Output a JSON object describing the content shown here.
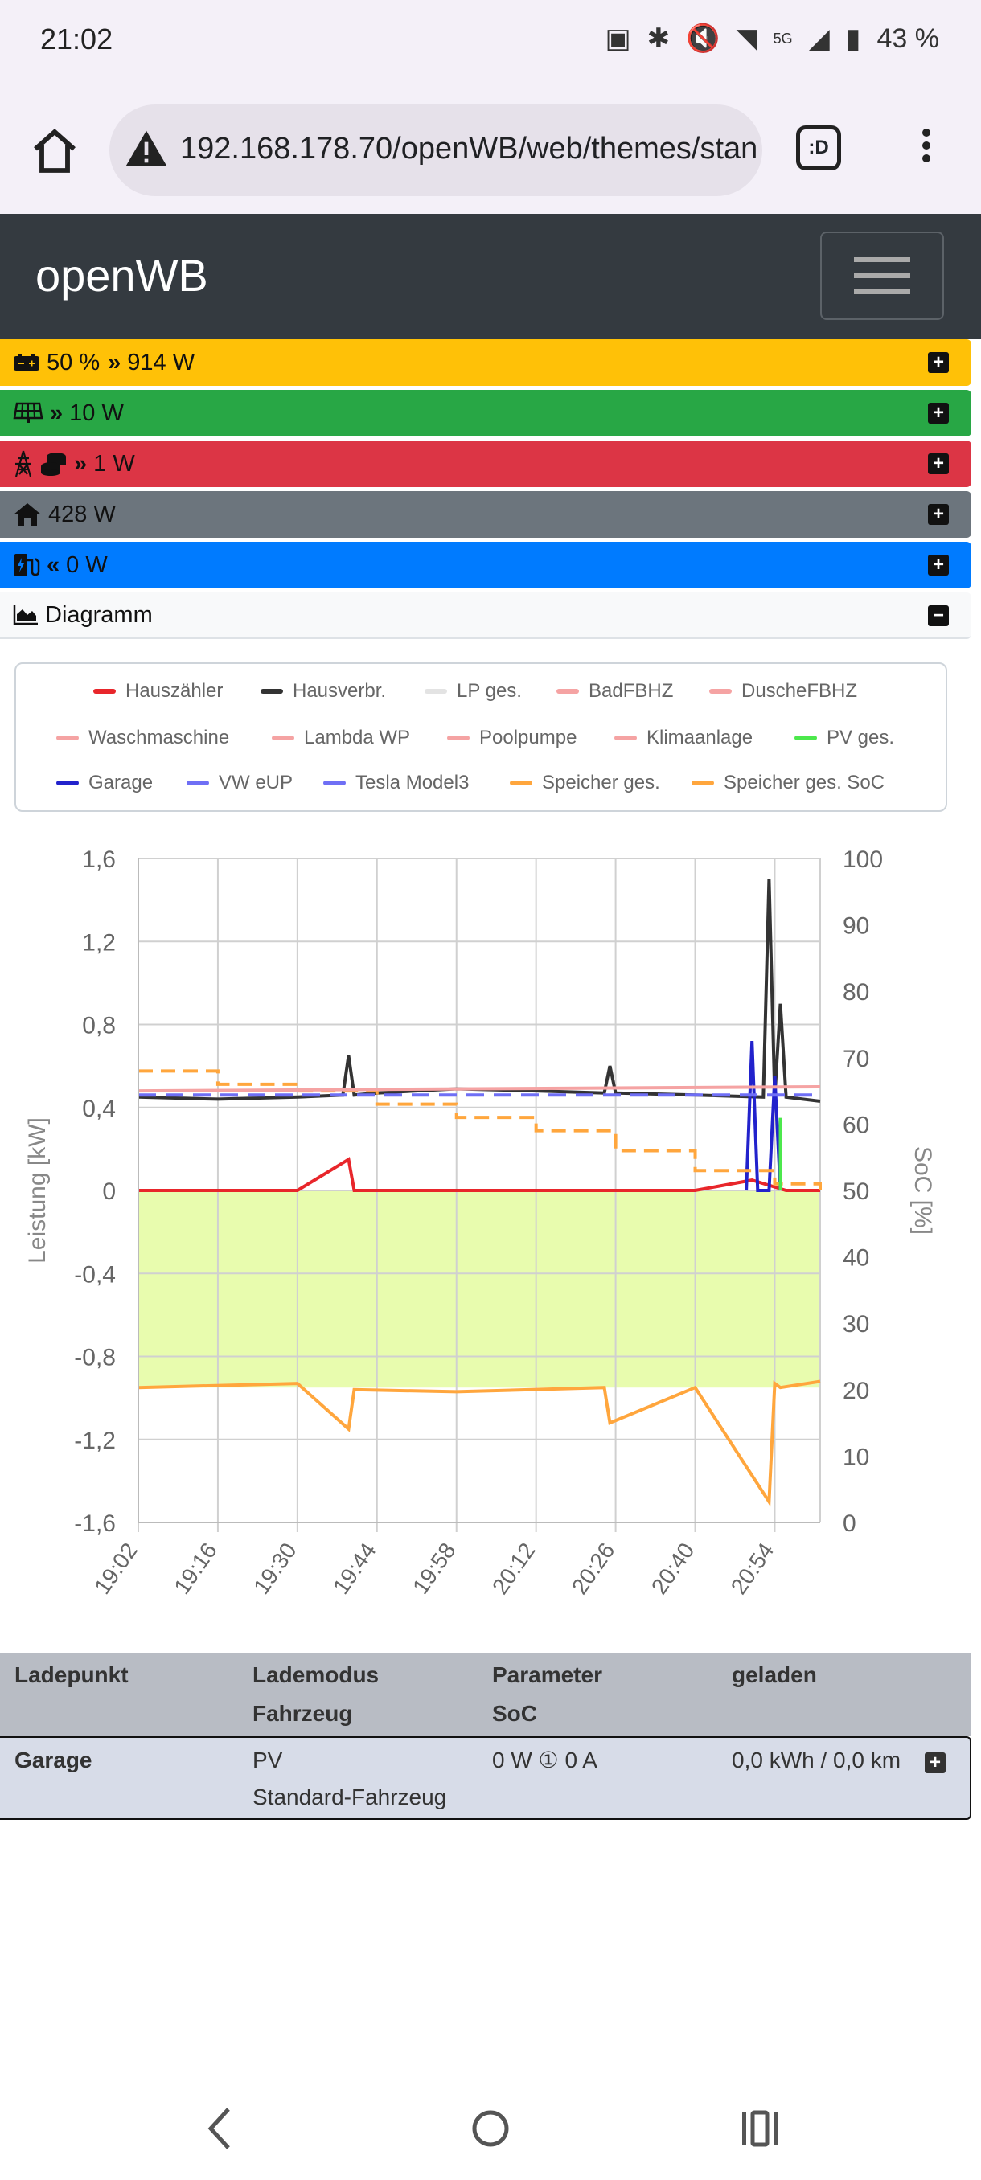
{
  "status": {
    "time": "21:02",
    "network": "5G",
    "battery": "43 %"
  },
  "browser": {
    "url": "192.168.178.70/openWB/web/themes/stan",
    "tabs_label": ":D"
  },
  "navbar": {
    "brand": "openWB"
  },
  "rows": {
    "battery": {
      "soc": "50 %",
      "power": "914 W"
    },
    "pv": {
      "power": "10 W"
    },
    "grid": {
      "power": "1 W"
    },
    "house": {
      "power": "428 W"
    },
    "charge": {
      "power": "0 W"
    },
    "diagram": {
      "label": "Diagramm"
    }
  },
  "legend": [
    {
      "label": "Hauszähler",
      "color": "#e8262b"
    },
    {
      "label": "Hausverbr.",
      "color": "#333333"
    },
    {
      "label": "LP ges.",
      "color": "#e3e3e3"
    },
    {
      "label": "BadFBHZ",
      "color": "#f5a3a3"
    },
    {
      "label": "DuscheFBHZ",
      "color": "#f5a3a3"
    },
    {
      "label": "Waschmaschine",
      "color": "#f5a3a3"
    },
    {
      "label": "Lambda WP",
      "color": "#f5a3a3"
    },
    {
      "label": "Poolpumpe",
      "color": "#f5a3a3"
    },
    {
      "label": "Klimaanlage",
      "color": "#f5a3a3"
    },
    {
      "label": "PV ges.",
      "color": "#4ce84c"
    },
    {
      "label": "Garage",
      "color": "#2222cc"
    },
    {
      "label": "VW eUP",
      "color": "#6f6ff5"
    },
    {
      "label": "Tesla Model3",
      "color": "#6f6ff5"
    },
    {
      "label": "Speicher ges.",
      "color": "#ffa63d"
    },
    {
      "label": "Speicher ges. SoC",
      "color": "#ffa63d"
    }
  ],
  "chart_data": {
    "type": "line",
    "ylabel": "Leistung [kW]",
    "y2label": "SoC [%]",
    "ylim": [
      -1.6,
      1.6
    ],
    "y2lim": [
      0,
      100
    ],
    "yticks": [
      "1,6",
      "1,2",
      "0,8",
      "0,4",
      "0",
      "-0,4",
      "-0,8",
      "-1,2",
      "-1,6"
    ],
    "y2ticks": [
      "100",
      "90",
      "80",
      "70",
      "60",
      "50",
      "40",
      "30",
      "20",
      "10",
      "0"
    ],
    "xticks": [
      "19:02",
      "19:16",
      "19:30",
      "19:44",
      "19:58",
      "20:12",
      "20:26",
      "20:40",
      "20:54"
    ],
    "grid": true,
    "series": [
      {
        "name": "Hausverbr.",
        "x": [
          "19:02",
          "19:16",
          "19:30",
          "19:38",
          "19:39",
          "19:40",
          "19:44",
          "19:58",
          "20:12",
          "20:24",
          "20:25",
          "20:26",
          "20:40",
          "20:52",
          "20:53",
          "20:54",
          "20:55",
          "20:56",
          "21:02"
        ],
        "values": [
          0.45,
          0.44,
          0.45,
          0.46,
          0.65,
          0.46,
          0.47,
          0.49,
          0.48,
          0.47,
          0.6,
          0.47,
          0.46,
          0.45,
          1.5,
          0.45,
          0.9,
          0.45,
          0.43
        ],
        "color": "#333333"
      },
      {
        "name": "Hauszähler",
        "x": [
          "19:02",
          "19:30",
          "19:39",
          "19:40",
          "19:58",
          "20:40",
          "20:50",
          "20:56",
          "21:02"
        ],
        "values": [
          0.0,
          0.0,
          0.15,
          0.0,
          0.0,
          0.0,
          0.05,
          0.0,
          0.0
        ],
        "color": "#e8262b"
      },
      {
        "name": "Speicher ges.",
        "x": [
          "19:02",
          "19:30",
          "19:39",
          "19:40",
          "19:58",
          "20:24",
          "20:25",
          "20:40",
          "20:53",
          "20:54",
          "20:55",
          "21:02"
        ],
        "values": [
          -0.95,
          -0.93,
          -1.15,
          -0.96,
          -0.97,
          -0.95,
          -1.12,
          -0.95,
          -1.5,
          -0.93,
          -0.95,
          -0.92
        ],
        "color": "#ffa63d"
      },
      {
        "name": "Garage",
        "x": [
          "20:49",
          "20:50",
          "20:51",
          "20:53",
          "20:54",
          "20:55"
        ],
        "values": [
          0.0,
          0.72,
          0.0,
          0.0,
          0.55,
          0.0
        ],
        "color": "#2222cc"
      },
      {
        "name": "Speicher ges. SoC",
        "axis": "y2",
        "x": [
          "19:02",
          "19:16",
          "19:30",
          "19:44",
          "19:58",
          "20:12",
          "20:26",
          "20:40",
          "20:54",
          "21:02"
        ],
        "values": [
          68,
          66,
          65,
          63,
          61,
          59,
          56,
          53,
          51,
          50
        ],
        "color": "#ffa63d"
      }
    ]
  },
  "table": {
    "headers": [
      [
        "Ladepunkt",
        ""
      ],
      [
        "Lademodus",
        "Fahrzeug"
      ],
      [
        "Parameter",
        "SoC"
      ],
      [
        "geladen",
        ""
      ]
    ],
    "row": {
      "name": "Garage",
      "mode": "PV",
      "vehicle": "Standard-Fahrzeug",
      "params": "0 W ① 0 A",
      "charged": "0,0 kWh / 0,0 km"
    }
  }
}
